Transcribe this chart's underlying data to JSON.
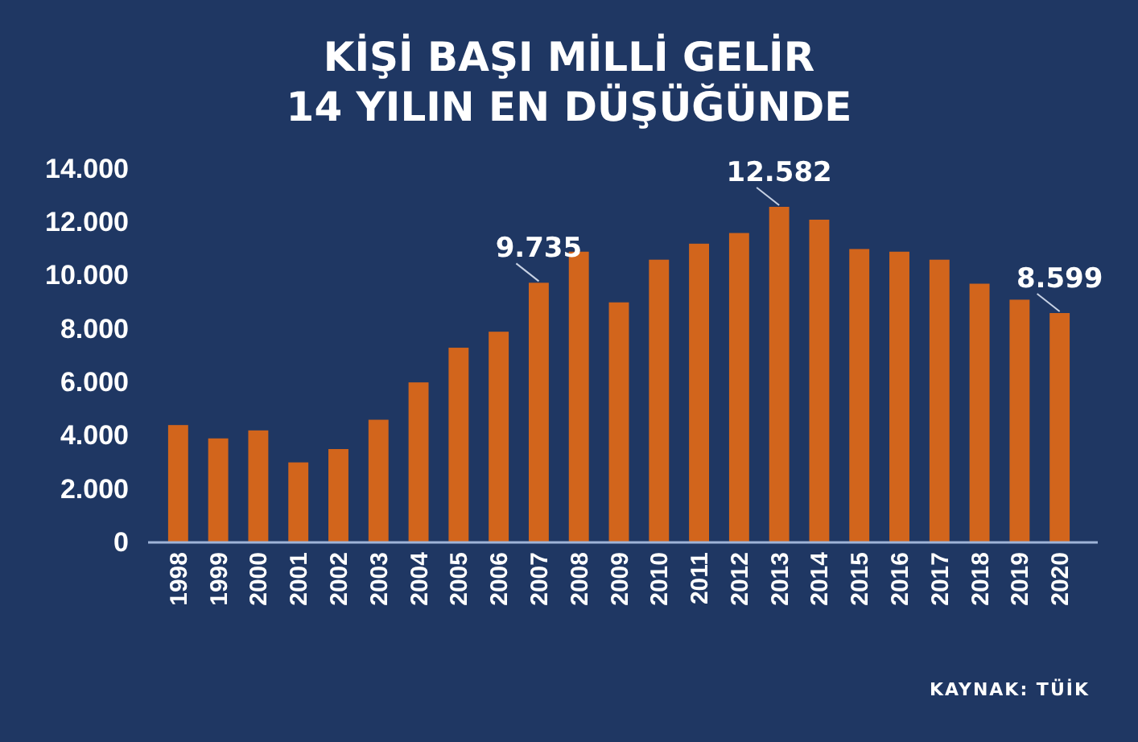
{
  "chart_data": {
    "type": "bar",
    "title": "KİŞİ BAŞI MİLLİ GELİR\n14 YILIN EN DÜŞÜĞÜNDE",
    "categories": [
      "1998",
      "1999",
      "2000",
      "2001",
      "2002",
      "2003",
      "2004",
      "2005",
      "2006",
      "2007",
      "2008",
      "2009",
      "2010",
      "2011",
      "2012",
      "2013",
      "2014",
      "2015",
      "2016",
      "2017",
      "2018",
      "2019",
      "2020"
    ],
    "values": [
      4400,
      3900,
      4200,
      3000,
      3500,
      4600,
      6000,
      7300,
      7900,
      9735,
      10900,
      9000,
      10600,
      11200,
      11600,
      12582,
      12100,
      11000,
      10900,
      10600,
      9700,
      9100,
      8599
    ],
    "value_labels": [
      null,
      null,
      null,
      null,
      null,
      null,
      null,
      null,
      null,
      "9.735",
      null,
      null,
      null,
      null,
      null,
      "12.582",
      null,
      null,
      null,
      null,
      null,
      null,
      "8.599"
    ],
    "color": "#d2651c",
    "ylim": [
      0,
      14000
    ],
    "yticks": [
      0,
      {
        "value": 2000,
        "label": "2.000"
      },
      {
        "value": 4000,
        "label": "4.000"
      },
      {
        "value": 6000,
        "label": "6.000"
      },
      {
        "value": 8000,
        "label": "8.000"
      },
      {
        "value": 10000,
        "label": "10.000"
      },
      {
        "value": 12000,
        "label": "12.000"
      },
      {
        "value": 14000,
        "label": "14.000"
      }
    ],
    "grid": false,
    "annotations": [
      "KAYNAK: TÜİK"
    ]
  }
}
